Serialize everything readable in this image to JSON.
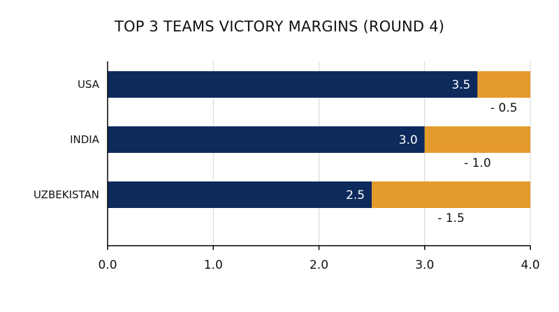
{
  "chart_data": {
    "type": "bar",
    "orientation": "horizontal",
    "stacked": true,
    "title": "TOP 3 TEAMS VICTORY MARGINS (ROUND 4)",
    "categories": [
      "USA",
      "INDIA",
      "UZBEKISTAN"
    ],
    "series": [
      {
        "values": [
          3.5,
          3.0,
          2.5
        ],
        "labels": [
          "3.5",
          "3.0",
          "2.5"
        ],
        "color": "#0d2a5c"
      },
      {
        "values": [
          0.5,
          1.0,
          1.5
        ],
        "labels": [
          "- 0.5",
          "- 1.0",
          "- 1.5"
        ],
        "color": "#e59b2b"
      }
    ],
    "xlim": [
      0,
      4
    ],
    "xticks": [
      "0.0",
      "1.0",
      "2.0",
      "3.0",
      "4.0"
    ],
    "grid": true
  }
}
